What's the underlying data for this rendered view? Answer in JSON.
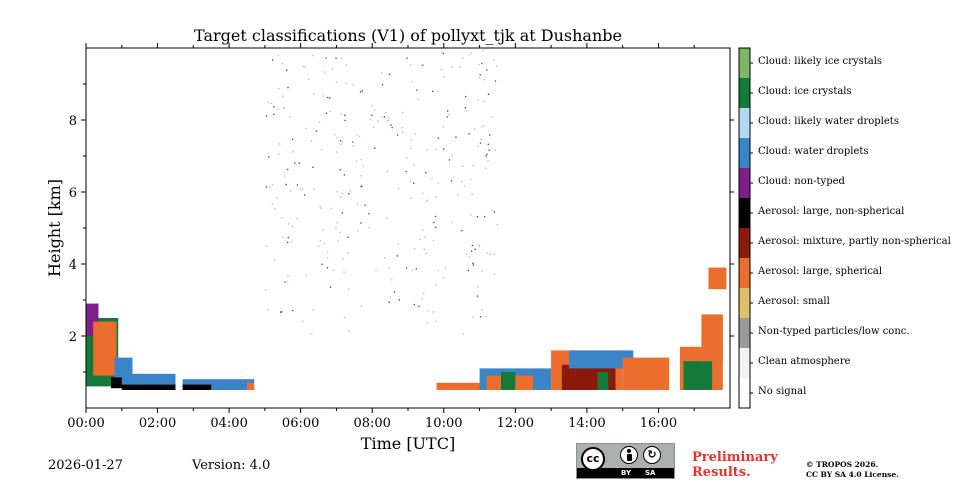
{
  "chart_data": {
    "type": "heatmap",
    "title": "Target classifications (V1) of pollyxt_tjk at Dushanbe",
    "xlabel": "Time [UTC]",
    "ylabel": "Height [km]",
    "xlim": [
      0,
      18
    ],
    "ylim": [
      0,
      10
    ],
    "x_ticks": [
      {
        "value": 0,
        "label": "00:00"
      },
      {
        "value": 2,
        "label": "02:00"
      },
      {
        "value": 4,
        "label": "04:00"
      },
      {
        "value": 6,
        "label": "06:00"
      },
      {
        "value": 8,
        "label": "08:00"
      },
      {
        "value": 10,
        "label": "10:00"
      },
      {
        "value": 12,
        "label": "12:00"
      },
      {
        "value": 14,
        "label": "14:00"
      },
      {
        "value": 16,
        "label": "16:00"
      }
    ],
    "y_ticks": [
      {
        "value": 2,
        "label": "2"
      },
      {
        "value": 4,
        "label": "4"
      },
      {
        "value": 6,
        "label": "6"
      },
      {
        "value": 8,
        "label": "8"
      }
    ],
    "classes": [
      {
        "label": "Cloud: likely ice crystals",
        "color": "#7fb564"
      },
      {
        "label": "Cloud: ice crystals",
        "color": "#137a3a"
      },
      {
        "label": "Cloud: likely water droplets",
        "color": "#b3d9f2"
      },
      {
        "label": "Cloud: water droplets",
        "color": "#3a85c8"
      },
      {
        "label": "Cloud: non-typed",
        "color": "#7d1f8c"
      },
      {
        "label": "Aerosol: large, non-spherical",
        "color": "#000000"
      },
      {
        "label": "Aerosol: mixture, partly non-spherical",
        "color": "#8b1a0a"
      },
      {
        "label": "Aerosol: large, spherical",
        "color": "#ec6e2f"
      },
      {
        "label": "Aerosol: small",
        "color": "#dcc26a"
      },
      {
        "label": "Non-typed particles/low conc.",
        "color": "#9b9b9b"
      },
      {
        "label": "Clean atmosphere",
        "color": "#f2f2f2"
      },
      {
        "label": "No signal",
        "color": "#ffffff"
      }
    ],
    "layers": [
      {
        "t_start": 0.0,
        "t_end": 0.9,
        "h_bottom": 0.6,
        "h_top": 2.5,
        "class": "Cloud: ice crystals"
      },
      {
        "t_start": 0.0,
        "t_end": 0.35,
        "h_bottom": 2.0,
        "h_top": 2.9,
        "class": "Cloud: non-typed"
      },
      {
        "t_start": 0.2,
        "t_end": 0.85,
        "h_bottom": 0.9,
        "h_top": 2.4,
        "class": "Aerosol: large, spherical"
      },
      {
        "t_start": 0.8,
        "t_end": 1.3,
        "h_bottom": 0.7,
        "h_top": 1.4,
        "class": "Cloud: water droplets"
      },
      {
        "t_start": 0.7,
        "t_end": 1.5,
        "h_bottom": 0.55,
        "h_top": 0.85,
        "class": "Aerosol: large, non-spherical"
      },
      {
        "t_start": 1.0,
        "t_end": 2.5,
        "h_bottom": 0.5,
        "h_top": 0.95,
        "class": "Cloud: water droplets"
      },
      {
        "t_start": 1.0,
        "t_end": 2.5,
        "h_bottom": 0.5,
        "h_top": 0.65,
        "class": "Aerosol: large, non-spherical"
      },
      {
        "t_start": 2.7,
        "t_end": 4.7,
        "h_bottom": 0.5,
        "h_top": 0.8,
        "class": "Cloud: water droplets"
      },
      {
        "t_start": 2.7,
        "t_end": 3.5,
        "h_bottom": 0.5,
        "h_top": 0.65,
        "class": "Aerosol: large, non-spherical"
      },
      {
        "t_start": 4.5,
        "t_end": 4.7,
        "h_bottom": 0.5,
        "h_top": 0.7,
        "class": "Aerosol: large, spherical"
      },
      {
        "t_start": 9.8,
        "t_end": 11.2,
        "h_bottom": 0.5,
        "h_top": 0.7,
        "class": "Aerosol: large, spherical"
      },
      {
        "t_start": 11.0,
        "t_end": 13.0,
        "h_bottom": 0.5,
        "h_top": 1.1,
        "class": "Cloud: water droplets"
      },
      {
        "t_start": 11.2,
        "t_end": 12.5,
        "h_bottom": 0.5,
        "h_top": 0.9,
        "class": "Aerosol: large, spherical"
      },
      {
        "t_start": 11.6,
        "t_end": 12.0,
        "h_bottom": 0.5,
        "h_top": 1.0,
        "class": "Cloud: ice crystals"
      },
      {
        "t_start": 13.0,
        "t_end": 15.0,
        "h_bottom": 0.5,
        "h_top": 1.6,
        "class": "Aerosol: large, spherical"
      },
      {
        "t_start": 13.3,
        "t_end": 14.8,
        "h_bottom": 0.5,
        "h_top": 1.2,
        "class": "Aerosol: mixture, partly non-spherical"
      },
      {
        "t_start": 13.5,
        "t_end": 15.3,
        "h_bottom": 1.1,
        "h_top": 1.6,
        "class": "Cloud: water droplets"
      },
      {
        "t_start": 14.3,
        "t_end": 14.6,
        "h_bottom": 0.5,
        "h_top": 1.0,
        "class": "Cloud: ice crystals"
      },
      {
        "t_start": 15.0,
        "t_end": 16.3,
        "h_bottom": 0.5,
        "h_top": 1.4,
        "class": "Aerosol: large, spherical"
      },
      {
        "t_start": 16.6,
        "t_end": 17.8,
        "h_bottom": 0.5,
        "h_top": 1.7,
        "class": "Aerosol: large, spherical"
      },
      {
        "t_start": 16.7,
        "t_end": 17.5,
        "h_bottom": 0.5,
        "h_top": 1.3,
        "class": "Cloud: ice crystals"
      },
      {
        "t_start": 17.2,
        "t_end": 17.8,
        "h_bottom": 1.3,
        "h_top": 2.6,
        "class": "Aerosol: large, spherical"
      },
      {
        "t_start": 17.4,
        "t_end": 17.9,
        "h_bottom": 3.3,
        "h_top": 3.9,
        "class": "Aerosol: large, spherical"
      }
    ],
    "noise": {
      "t_start": 5.0,
      "t_end": 11.5,
      "h_bottom": 2.0,
      "h_top": 10.0,
      "class": "Clean atmosphere"
    }
  },
  "footer": {
    "date": "2026-01-27",
    "version": "Version: 4.0",
    "license_badge": {
      "cc": "cc",
      "by": "BY",
      "sa": "SA"
    },
    "preliminary_line1": "Preliminary",
    "preliminary_line2": "Results.",
    "copyright_line1": "© TROPOS 2026.",
    "copyright_line2": "CC BY SA 4.0 License."
  }
}
